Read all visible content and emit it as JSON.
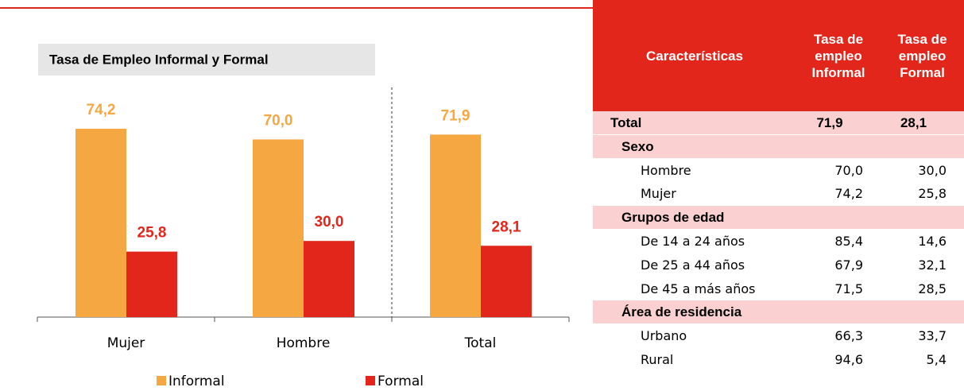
{
  "chart_data": {
    "type": "bar",
    "title": "Tasa de Empleo Informal y Formal",
    "categories": [
      "Mujer",
      "Hombre",
      "Total"
    ],
    "series": [
      {
        "name": "Informal",
        "color": "#f5a742",
        "values": [
          74.2,
          70.0,
          71.9
        ],
        "value_labels": [
          "74,2",
          "70,0",
          "71,9"
        ]
      },
      {
        "name": "Formal",
        "color": "#e2261c",
        "values": [
          25.8,
          30.0,
          28.1
        ],
        "value_labels": [
          "25,8",
          "30,0",
          "28,1"
        ]
      }
    ]
  },
  "table": {
    "header": [
      "Características",
      "Tasa de empleo Informal",
      "Tasa de empleo Formal"
    ],
    "rows": [
      [
        "Total",
        "71,9",
        "28,1"
      ],
      [
        "Sexo"
      ],
      [
        "Hombre",
        "70,0",
        "30,0"
      ],
      [
        "Mujer",
        "74,2",
        "25,8"
      ],
      [
        "Grupos de edad"
      ],
      [
        "De 14 a 24 años",
        "85,4",
        "14,6"
      ],
      [
        "De 25 a 44 años",
        "67,9",
        "32,1"
      ],
      [
        "De 45 a más años",
        "71,5",
        "28,5"
      ],
      [
        "Área de residencia"
      ],
      [
        "Urbano",
        "66,3",
        "33,7"
      ],
      [
        "Rural",
        "94,6",
        "5,4"
      ]
    ]
  }
}
